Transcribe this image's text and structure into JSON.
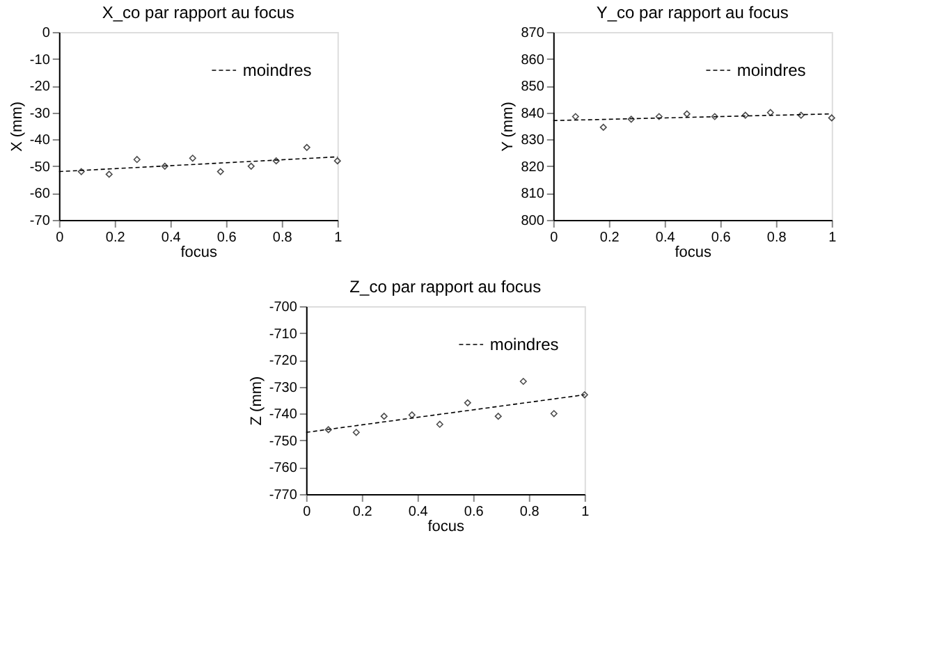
{
  "chart_data": [
    {
      "type": "scatter",
      "title": "X_co par rapport au focus",
      "xlabel": "focus",
      "ylabel": "X (mm)",
      "xlim": [
        0,
        1
      ],
      "xticks": [
        0,
        0.2,
        0.4,
        0.6,
        0.8,
        1
      ],
      "ylim": [
        -70,
        0
      ],
      "yticks": [
        -70,
        -60,
        -50,
        -40,
        -30,
        -20,
        -10,
        0
      ],
      "grid": false,
      "legend": "top right",
      "series": [
        {
          "type": "scatter",
          "color": "#000000",
          "marker": "diamond",
          "x": [
            0.08,
            0.18,
            0.28,
            0.38,
            0.48,
            0.58,
            0.69,
            0.78,
            0.89,
            1.0
          ],
          "values": [
            -52,
            -53,
            -47.5,
            -50,
            -47,
            -52,
            -50,
            -48,
            -43,
            -48
          ]
        },
        {
          "type": "line",
          "name": "moindres",
          "color": "#000000",
          "line_style": "dashed",
          "x": [
            0,
            1
          ],
          "values": [
            -52,
            -46.5
          ]
        }
      ]
    },
    {
      "type": "scatter",
      "title": "Y_co par rapport au focus",
      "xlabel": "focus",
      "ylabel": "Y (mm)",
      "xlim": [
        0,
        1
      ],
      "xticks": [
        0,
        0.2,
        0.4,
        0.6,
        0.8,
        1
      ],
      "ylim": [
        800,
        870
      ],
      "yticks": [
        800,
        810,
        820,
        830,
        840,
        850,
        860,
        870
      ],
      "grid": false,
      "legend": "top right",
      "series": [
        {
          "type": "scatter",
          "color": "#000000",
          "marker": "diamond",
          "x": [
            0.08,
            0.18,
            0.28,
            0.38,
            0.48,
            0.58,
            0.69,
            0.78,
            0.89,
            1.0
          ],
          "values": [
            838.5,
            834.5,
            837.5,
            838.5,
            839.5,
            838.5,
            839,
            840,
            839,
            838
          ]
        },
        {
          "type": "line",
          "name": "moindres",
          "color": "#000000",
          "line_style": "dashed",
          "x": [
            0,
            1
          ],
          "values": [
            837,
            839.5
          ]
        }
      ]
    },
    {
      "type": "scatter",
      "title": "Z_co par rapport au focus",
      "xlabel": "focus",
      "ylabel": "Z (mm)",
      "xlim": [
        0,
        1
      ],
      "xticks": [
        0,
        0.2,
        0.4,
        0.6,
        0.8,
        1
      ],
      "ylim": [
        -770,
        -700
      ],
      "yticks": [
        -770,
        -760,
        -750,
        -740,
        -730,
        -720,
        -710,
        -700
      ],
      "grid": false,
      "legend": "top right",
      "series": [
        {
          "type": "scatter",
          "color": "#000000",
          "marker": "diamond",
          "x": [
            0.08,
            0.18,
            0.28,
            0.38,
            0.48,
            0.58,
            0.69,
            0.78,
            0.89,
            1.0
          ],
          "values": [
            -746,
            -747,
            -741,
            -740.5,
            -744,
            -736,
            -741,
            -728,
            -740,
            -733
          ]
        },
        {
          "type": "line",
          "name": "moindres",
          "color": "#000000",
          "line_style": "dashed",
          "x": [
            0,
            1
          ],
          "values": [
            -747,
            -733
          ]
        }
      ]
    }
  ]
}
